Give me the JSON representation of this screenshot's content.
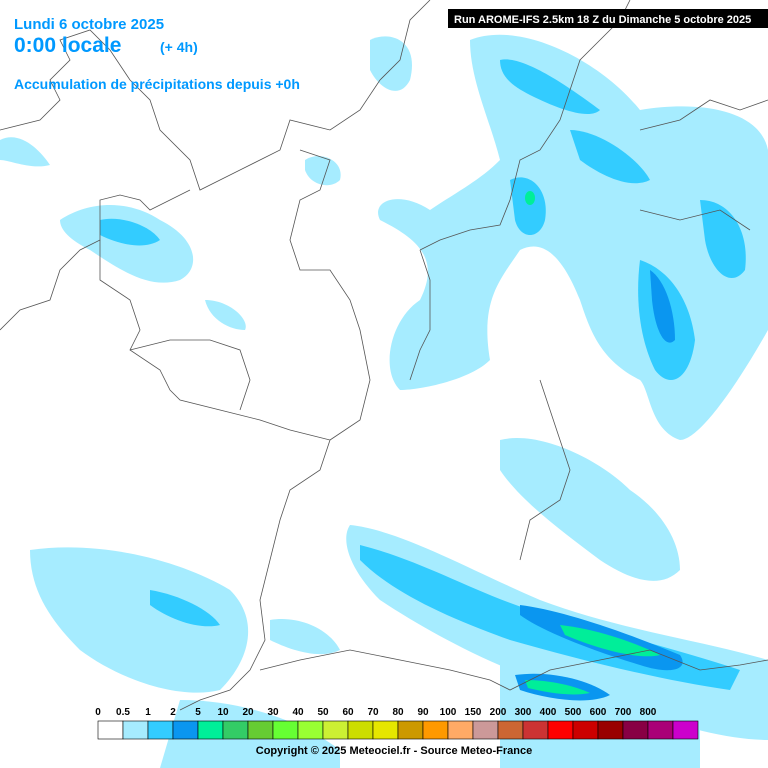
{
  "header": {
    "date": "Lundi 6 octobre 2025",
    "time": "0:00 locale",
    "lead": "(+ 4h)",
    "subtitle": "Accumulation de précipitations depuis +0h"
  },
  "run": "Run AROME-IFS 2.5km 18 Z du Dimanche 5 octobre 2025",
  "legend": {
    "labels": [
      "0",
      "0.5",
      "1",
      "2",
      "5",
      "10",
      "20",
      "30",
      "40",
      "50",
      "60",
      "70",
      "80",
      "90",
      "100",
      "150",
      "200",
      "300",
      "400",
      "500",
      "600",
      "700",
      "800"
    ],
    "colors": [
      "#ffffff",
      "#a6ecff",
      "#33ccff",
      "#0a96f0",
      "#00ee99",
      "#33cc66",
      "#66cc33",
      "#66ff33",
      "#99ff33",
      "#ccf033",
      "#ccdd00",
      "#e6e600",
      "#cc9900",
      "#ff9900",
      "#ffaa66",
      "#cc9999",
      "#cc6633",
      "#cc3333",
      "#ff0000",
      "#cc0000",
      "#990000",
      "#880044",
      "#aa0077",
      "#cc00cc"
    ]
  },
  "copyright": "Copyright © 2025 Meteociel.fr - Source Meteo-France"
}
